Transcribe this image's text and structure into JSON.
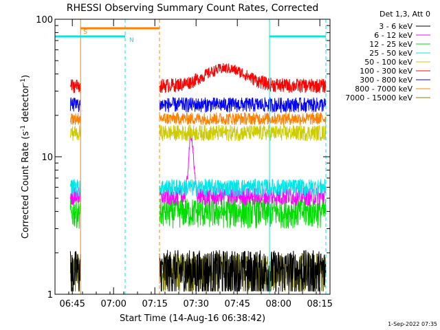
{
  "chart_data": {
    "type": "line",
    "title": "RHESSI Observing Summary Count Rates, Corrected",
    "xlabel": "Start Time (14-Aug-16 06:38:42)",
    "ylabel_main": "Corrected Count Rate (s",
    "ylabel_sup1": "-1",
    "ylabel_mid": " detector",
    "ylabel_sup2": "-1",
    "ylabel_end": ")",
    "x_range_minutes": [
      0,
      100
    ],
    "y_scale": "log",
    "ylim": [
      1,
      100
    ],
    "y_ticks": [
      {
        "value": 1,
        "label": "1"
      },
      {
        "value": 10,
        "label": "10"
      },
      {
        "value": 100,
        "label": "100"
      }
    ],
    "x_ticks": [
      {
        "minute": 6.3,
        "label": "06:45"
      },
      {
        "minute": 21.3,
        "label": "07:00"
      },
      {
        "minute": 36.3,
        "label": "07:15"
      },
      {
        "minute": 51.3,
        "label": "07:30"
      },
      {
        "minute": 66.3,
        "label": "07:45"
      },
      {
        "minute": 81.3,
        "label": "08:00"
      },
      {
        "minute": 96.3,
        "label": "08:15"
      }
    ],
    "legend": {
      "placement": "right",
      "header": "Det 1,3, Att 0",
      "items": [
        {
          "label": "3 - 6 keV",
          "color": "#000000"
        },
        {
          "label": "6 - 12 keV",
          "color": "#ff00ff"
        },
        {
          "label": "12 - 25 keV",
          "color": "#00dd00"
        },
        {
          "label": "25 - 50 keV",
          "color": "#00e5e5"
        },
        {
          "label": "50 - 100 keV",
          "color": "#cccc00"
        },
        {
          "label": "100 - 300 keV",
          "color": "#ff0000"
        },
        {
          "label": "300 - 800 keV",
          "color": "#0000ff"
        },
        {
          "label": "800 - 7000 keV",
          "color": "#ff8000"
        },
        {
          "label": "7000 - 15000 keV",
          "color": "#808000"
        }
      ]
    },
    "data_gap_minutes": [
      9.3,
      38.0
    ],
    "series": [
      {
        "name": "3 - 6 keV",
        "color": "#000000",
        "baseline": 1.5,
        "noise": 0.6
      },
      {
        "name": "6 - 12 keV",
        "color": "#ff00ff",
        "baseline": 5.2,
        "noise": 0.8,
        "spike_minute": 49.5,
        "spike_peak": 14
      },
      {
        "name": "12 - 25 keV",
        "color": "#00dd00",
        "baseline": 4.0,
        "noise": 1.0
      },
      {
        "name": "25 - 50 keV",
        "color": "#00e5e5",
        "baseline": 6.0,
        "noise": 0.9
      },
      {
        "name": "50 - 100 keV",
        "color": "#cccc00",
        "baseline": 15.0,
        "noise": 2.0
      },
      {
        "name": "100 - 300 keV",
        "color": "#ff0000",
        "baseline": 33.0,
        "noise": 4.0,
        "bump_minute": 62,
        "bump_peak": 44
      },
      {
        "name": "300 - 800 keV",
        "color": "#0000ff",
        "baseline": 24.0,
        "noise": 3.0
      },
      {
        "name": "800 - 7000 keV",
        "color": "#ff8000",
        "baseline": 19.0,
        "noise": 2.0
      },
      {
        "name": "7000 - 15000 keV",
        "color": "#808000",
        "baseline": 1.5,
        "noise": 0.5
      }
    ],
    "status_bars": [
      {
        "label": "S",
        "color": "#ff8000",
        "start_minute": 9.3,
        "end_minute": 38.0,
        "level": 86
      },
      {
        "label": "N",
        "color": "#00e5e5",
        "start_minute": 0,
        "end_minute": 25.5,
        "level": 75
      },
      {
        "label": "",
        "color": "#00e5e5",
        "start_minute": 78.0,
        "end_minute": 98.5,
        "level": 75
      }
    ],
    "vlines": [
      {
        "minute": 9.3,
        "color": "#ff8000",
        "style": "solid"
      },
      {
        "minute": 25.5,
        "color": "#00e5e5",
        "style": "dashed"
      },
      {
        "minute": 38.0,
        "color": "#ff8000",
        "style": "dashed"
      },
      {
        "minute": 78.0,
        "color": "#00e5e5",
        "style": "solid"
      },
      {
        "minute": 98.5,
        "color": "#00e5e5",
        "style": "dashed"
      }
    ]
  },
  "footer_date": "1-Sep-2022 07:35"
}
